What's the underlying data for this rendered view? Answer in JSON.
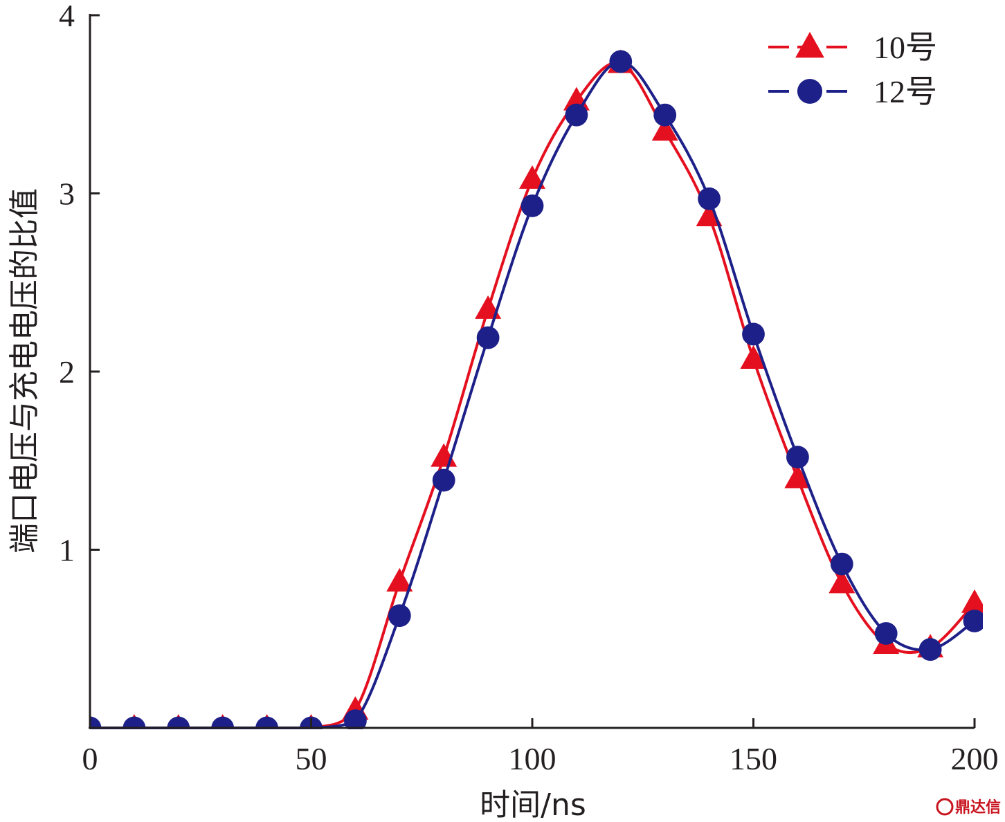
{
  "chart_data": {
    "type": "line",
    "xlabel": "时间/ns",
    "ylabel": "端口电压与充电电压的比值",
    "xlim": [
      0,
      200
    ],
    "ylim": [
      0,
      4
    ],
    "x_ticks": [
      0,
      50,
      100,
      150,
      200
    ],
    "y_ticks": [
      1,
      2,
      3,
      4
    ],
    "x_tick_labels": [
      "0",
      "50",
      "100",
      "150",
      "200"
    ],
    "y_tick_labels": [
      "1",
      "2",
      "3",
      "4"
    ],
    "grid": false,
    "legend_position": "top-right",
    "series": [
      {
        "name": "10号",
        "color": "#e4101f",
        "marker": "triangle",
        "x": [
          0,
          10,
          20,
          30,
          40,
          50,
          60,
          70,
          80,
          90,
          100,
          110,
          120,
          130,
          140,
          150,
          160,
          170,
          180,
          190,
          200
        ],
        "y": [
          0,
          0,
          0,
          0,
          0,
          0,
          0.1,
          0.82,
          1.52,
          2.35,
          3.08,
          3.52,
          3.73,
          3.35,
          2.87,
          2.07,
          1.4,
          0.81,
          0.47,
          0.45,
          0.7
        ]
      },
      {
        "name": "12号",
        "color": "#1d2088",
        "marker": "circle",
        "x": [
          0,
          10,
          20,
          30,
          40,
          50,
          60,
          70,
          80,
          90,
          100,
          110,
          120,
          130,
          140,
          150,
          160,
          170,
          180,
          190,
          200
        ],
        "y": [
          0,
          0,
          0,
          0,
          0,
          0,
          0.04,
          0.63,
          1.39,
          2.19,
          2.93,
          3.44,
          3.74,
          3.44,
          2.97,
          2.21,
          1.52,
          0.92,
          0.53,
          0.44,
          0.6
        ]
      }
    ]
  },
  "watermark": {
    "text": "鼎达信"
  }
}
